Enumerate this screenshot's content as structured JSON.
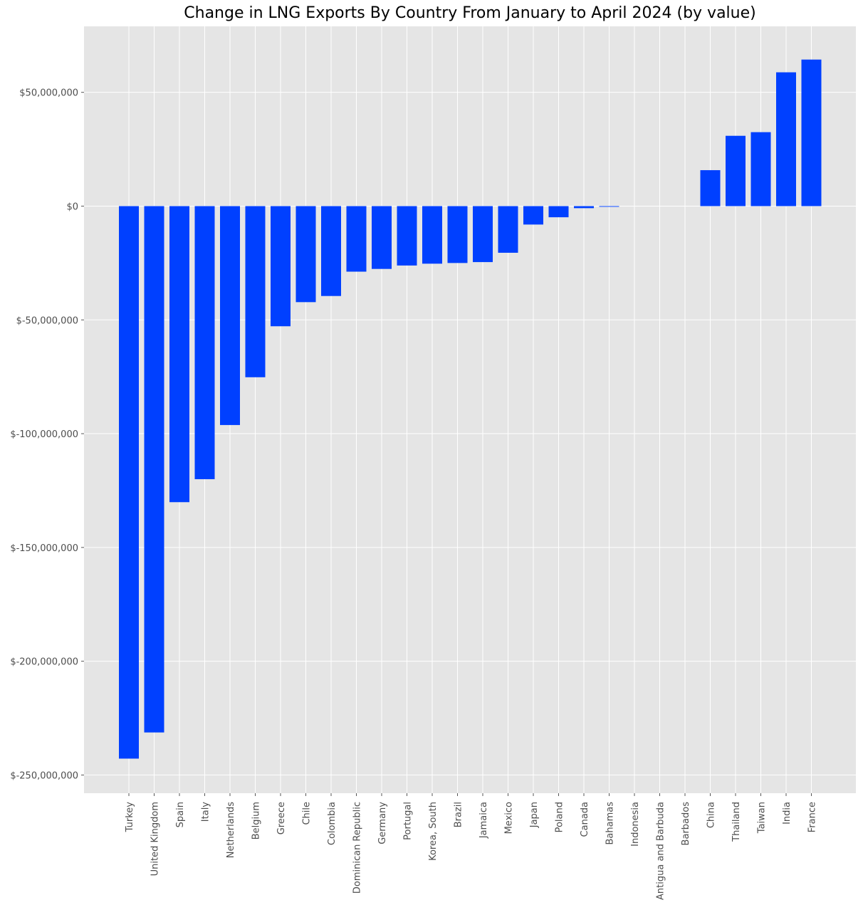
{
  "chart_data": {
    "type": "bar",
    "title": "Change in LNG Exports By Country From January to April 2024 (by value)",
    "xlabel": "",
    "ylabel": "",
    "ylim": [
      -258000000,
      79000000
    ],
    "grid": true,
    "bar_color": "#0040ff",
    "background_color": "#e5e5e5",
    "grid_color": "#ffffff",
    "yticks": [
      50000000,
      0,
      -50000000,
      -100000000,
      -150000000,
      -200000000,
      -250000000
    ],
    "ytick_labels": [
      "$50,000,000",
      "$0",
      "$-50,000,000",
      "$-100,000,000",
      "$-150,000,000",
      "$-200,000,000",
      "$-250,000,000"
    ],
    "categories": [
      "Turkey",
      "United Kingdom",
      "Spain",
      "Italy",
      "Netherlands",
      "Belgium",
      "Greece",
      "Chile",
      "Colombia",
      "Dominican Republic",
      "Germany",
      "Portugal",
      "Korea, South",
      "Brazil",
      "Jamaica",
      "Mexico",
      "Japan",
      "Poland",
      "Canada",
      "Bahamas",
      "Indonesia",
      "Antigua and Barbuda",
      "Barbados",
      "China",
      "Thailand",
      "Taiwan",
      "India",
      "France"
    ],
    "values": [
      -242800000,
      -231300000,
      -130100000,
      -120000000,
      -96200000,
      -75200000,
      -52800000,
      -42200000,
      -39500000,
      -28800000,
      -27600000,
      -26100000,
      -25300000,
      -25000000,
      -24600000,
      -20500000,
      -8100000,
      -4900000,
      -900000,
      -300000,
      0,
      0,
      0,
      15800000,
      30900000,
      32500000,
      58800000,
      64400000
    ]
  }
}
